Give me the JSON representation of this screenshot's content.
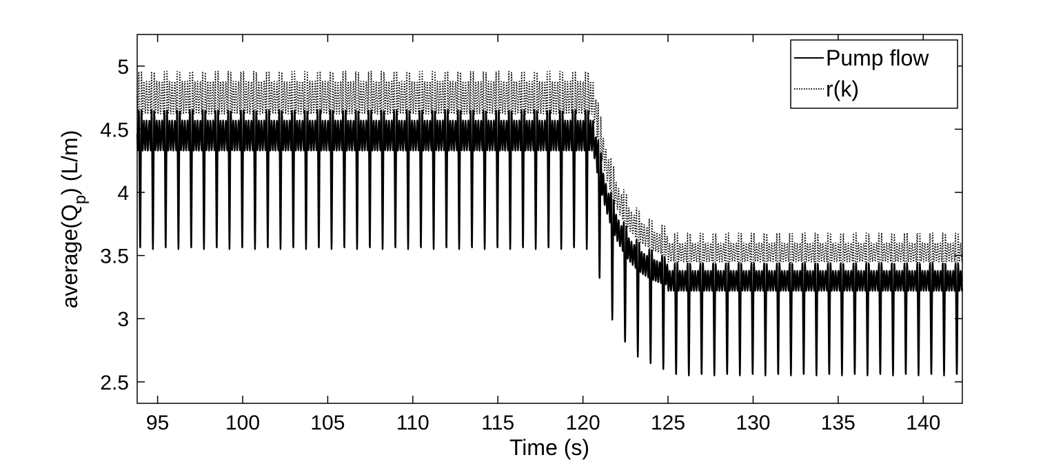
{
  "chart_data": {
    "type": "line",
    "xlabel": "Time (s)",
    "ylabel_main": "average(Q",
    "ylabel_sub": "p",
    "ylabel_tail": ") (L/m)",
    "xlim": [
      93.8,
      142.3
    ],
    "ylim": [
      2.33,
      5.25
    ],
    "xticks": [
      95,
      100,
      105,
      110,
      115,
      120,
      125,
      130,
      135,
      140
    ],
    "yticks": [
      2.5,
      3,
      3.5,
      4,
      4.5,
      5
    ],
    "ytick_labels": [
      "2.5",
      "3",
      "3.5",
      "4",
      "4.5",
      "5"
    ],
    "grid": false,
    "legend_position": "top-right",
    "period_s": 0.75,
    "step_time_s": 120.6,
    "settle_time_s": 125.0,
    "series": [
      {
        "name": "Pump flow",
        "style": "solid",
        "color": "#000000",
        "before": {
          "peak": 4.65,
          "shoulder": 4.57,
          "notch": 4.33,
          "trough": 3.55
        },
        "after": {
          "peak": 3.44,
          "shoulder": 3.38,
          "notch": 3.22,
          "trough": 2.55
        }
      },
      {
        "name": "r(k)",
        "style": "dotted",
        "color": "#000000",
        "before": {
          "peak": 4.96,
          "shoulder": 4.88,
          "notch": 4.62,
          "trough": 3.75
        },
        "after": {
          "peak": 3.68,
          "shoulder": 3.6,
          "notch": 3.45,
          "trough": 2.75
        }
      }
    ]
  }
}
